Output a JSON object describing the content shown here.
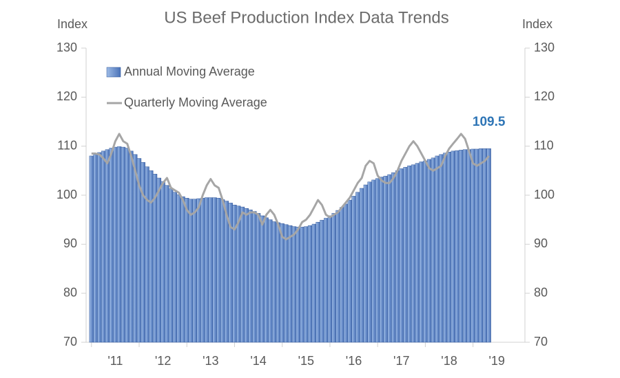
{
  "chart_data": {
    "type": "bar-line",
    "title": "US Beef Production Index Data Trends",
    "ylabel": "Index",
    "y2label": "Index",
    "ylim": [
      70,
      130
    ],
    "yticks": [
      70,
      80,
      90,
      100,
      110,
      120,
      130
    ],
    "y2lim": [
      70,
      130
    ],
    "y2ticks": [
      70,
      80,
      90,
      100,
      110,
      120,
      130
    ],
    "xlim": [
      2010.46,
      2019.56
    ],
    "xticks": [
      {
        "value": 2011,
        "label": "'11"
      },
      {
        "value": 2012,
        "label": "'12"
      },
      {
        "value": 2013,
        "label": "'13"
      },
      {
        "value": 2014,
        "label": "'14"
      },
      {
        "value": 2015,
        "label": "'15"
      },
      {
        "value": 2016,
        "label": "'16"
      },
      {
        "value": 2017,
        "label": "'17"
      },
      {
        "value": 2018,
        "label": "'18"
      },
      {
        "value": 2019,
        "label": "'19"
      }
    ],
    "legend": "upper left",
    "x": [
      2010.5,
      2010.583,
      2010.667,
      2010.75,
      2010.833,
      2010.917,
      2011.0,
      2011.083,
      2011.167,
      2011.25,
      2011.333,
      2011.417,
      2011.5,
      2011.583,
      2011.667,
      2011.75,
      2011.833,
      2011.917,
      2012.0,
      2012.083,
      2012.167,
      2012.25,
      2012.333,
      2012.417,
      2012.5,
      2012.583,
      2012.667,
      2012.75,
      2012.833,
      2012.917,
      2013.0,
      2013.083,
      2013.167,
      2013.25,
      2013.333,
      2013.417,
      2013.5,
      2013.583,
      2013.667,
      2013.75,
      2013.833,
      2013.917,
      2014.0,
      2014.083,
      2014.167,
      2014.25,
      2014.333,
      2014.417,
      2014.5,
      2014.583,
      2014.667,
      2014.75,
      2014.833,
      2014.917,
      2015.0,
      2015.083,
      2015.167,
      2015.25,
      2015.333,
      2015.417,
      2015.5,
      2015.583,
      2015.667,
      2015.75,
      2015.833,
      2015.917,
      2016.0,
      2016.083,
      2016.167,
      2016.25,
      2016.333,
      2016.417,
      2016.5,
      2016.583,
      2016.667,
      2016.75,
      2016.833,
      2016.917,
      2017.0,
      2017.083,
      2017.167,
      2017.25,
      2017.333,
      2017.417,
      2017.5,
      2017.583,
      2017.667,
      2017.75,
      2017.833,
      2017.917,
      2018.0,
      2018.083,
      2018.167,
      2018.25,
      2018.333,
      2018.417,
      2018.5,
      2018.583,
      2018.667,
      2018.75,
      2018.833
    ],
    "series": [
      {
        "name": "Annual Moving Average",
        "kind": "bar",
        "color": "#5b85c8",
        "values": [
          108,
          108.3,
          108.7,
          109,
          109.3,
          109.6,
          109.8,
          109.9,
          109.8,
          109.6,
          109,
          108.3,
          107.5,
          106.7,
          105.8,
          105,
          104.3,
          103.5,
          102.8,
          102,
          101.3,
          100.6,
          100.1,
          99.7,
          99.4,
          99.2,
          99.2,
          99.3,
          99.4,
          99.5,
          99.5,
          99.5,
          99.4,
          99.1,
          98.8,
          98.4,
          98,
          97.8,
          97.6,
          97.3,
          97,
          96.7,
          96.3,
          95.8,
          95.4,
          95,
          94.6,
          94.4,
          94.2,
          94,
          93.8,
          93.6,
          93.5,
          93.5,
          93.6,
          93.8,
          94.1,
          94.5,
          94.9,
          95.3,
          95.8,
          96.3,
          96.9,
          97.5,
          98.2,
          99,
          99.8,
          100.6,
          101.4,
          102.1,
          102.7,
          103.1,
          103.4,
          103.7,
          103.9,
          104.2,
          104.6,
          105,
          105.4,
          105.7,
          106,
          106.2,
          106.5,
          106.8,
          107,
          107.3,
          107.6,
          108,
          108.3,
          108.6,
          108.8,
          109,
          109.1,
          109.2,
          109.3,
          109.3,
          109.4,
          109.4,
          109.5,
          109.5,
          109.5
        ]
      },
      {
        "name": "Quarterly Moving Average",
        "kind": "line",
        "color": "#a6a6a6",
        "values": [
          108.5,
          108.5,
          108.3,
          107.5,
          106.5,
          108.5,
          111,
          112.5,
          111,
          110.5,
          108,
          105,
          102,
          100,
          99,
          98.5,
          99.5,
          101,
          102.5,
          103.5,
          101.5,
          101,
          100.5,
          99,
          97,
          96,
          96.5,
          97.5,
          100,
          102,
          103.3,
          102,
          101.5,
          99,
          96,
          93.5,
          93,
          94.5,
          96.5,
          96,
          96.5,
          96.5,
          96,
          94,
          96,
          97,
          96,
          94,
          91.5,
          91,
          91.5,
          92,
          93,
          94.5,
          95,
          96,
          97.5,
          99,
          98,
          96,
          95.5,
          96,
          96.5,
          97.5,
          98.5,
          99.5,
          101,
          102.5,
          103.5,
          106,
          107,
          106.5,
          104,
          103,
          102.5,
          102.5,
          103.5,
          105,
          107,
          108.5,
          110,
          111,
          110,
          108.5,
          107,
          105.5,
          105,
          105.5,
          106,
          108,
          109.5,
          110.5,
          111.5,
          112.5,
          111.5,
          109,
          106.5,
          106,
          106.5,
          107,
          108
        ]
      }
    ]
  }
}
